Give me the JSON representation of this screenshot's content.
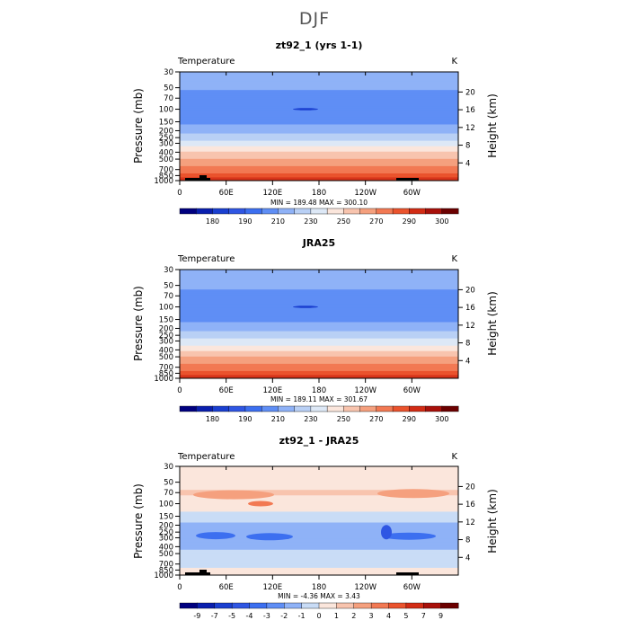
{
  "figure": {
    "title": "DJF"
  },
  "chart_data": [
    {
      "type": "heatmap",
      "title": "zt92_1 (yrs 1-1)",
      "variable": "Temperature",
      "units": "K",
      "ylabel": "Pressure (mb)",
      "y2label": "Height (km)",
      "x_ticks": [
        "0",
        "60E",
        "120E",
        "180",
        "120W",
        "60W"
      ],
      "y_ticks": [
        "30",
        "50",
        "70",
        "100",
        "150",
        "200",
        "250",
        "300",
        "400",
        "500",
        "700",
        "850",
        "1000"
      ],
      "y2_ticks": [
        "20",
        "16",
        "12",
        "8",
        "4"
      ],
      "stats": "MIN = 189.48   MAX = 300.10",
      "colorbar_levels": [
        175,
        180,
        185,
        190,
        200,
        210,
        220,
        230,
        240,
        250,
        260,
        270,
        280,
        290,
        295,
        300
      ],
      "colorbar_labels": [
        "180",
        "190",
        "210",
        "230",
        "250",
        "270",
        "290",
        "300"
      ],
      "colorbar_colors": [
        "#00007f",
        "#0a1fae",
        "#1a3fd0",
        "#2f56e3",
        "#3c6ff0",
        "#5f8ef5",
        "#8fb2f7",
        "#b9d0f5",
        "#dde8f6",
        "#fbe6dc",
        "#f8c4ae",
        "#f5a07e",
        "#f27953",
        "#ea532d",
        "#d22c15",
        "#a8100a",
        "#6b0000"
      ],
      "profile_levels": [
        {
          "p": 30,
          "T": 218
        },
        {
          "p": 50,
          "T": 212
        },
        {
          "p": 70,
          "T": 205
        },
        {
          "p": 100,
          "T": 202
        },
        {
          "p": 150,
          "T": 207
        },
        {
          "p": 200,
          "T": 216
        },
        {
          "p": 250,
          "T": 226
        },
        {
          "p": 300,
          "T": 234
        },
        {
          "p": 400,
          "T": 250
        },
        {
          "p": 500,
          "T": 262
        },
        {
          "p": 700,
          "T": 275
        },
        {
          "p": 850,
          "T": 282
        },
        {
          "p": 1000,
          "T": 290
        }
      ],
      "terrain": true
    },
    {
      "type": "heatmap",
      "title": "JRA25",
      "variable": "Temperature",
      "units": "K",
      "ylabel": "Pressure (mb)",
      "y2label": "Height (km)",
      "x_ticks": [
        "0",
        "60E",
        "120E",
        "180",
        "120W",
        "60W"
      ],
      "y_ticks": [
        "30",
        "50",
        "70",
        "100",
        "150",
        "200",
        "250",
        "300",
        "400",
        "500",
        "700",
        "850",
        "1000"
      ],
      "y2_ticks": [
        "20",
        "16",
        "12",
        "8",
        "4"
      ],
      "stats": "MIN = 189.11   MAX = 301.67",
      "colorbar_levels": [
        175,
        180,
        185,
        190,
        200,
        210,
        220,
        230,
        240,
        250,
        260,
        270,
        280,
        290,
        295,
        300
      ],
      "colorbar_labels": [
        "180",
        "190",
        "210",
        "230",
        "250",
        "270",
        "290",
        "300"
      ],
      "colorbar_colors": [
        "#00007f",
        "#0a1fae",
        "#1a3fd0",
        "#2f56e3",
        "#3c6ff0",
        "#5f8ef5",
        "#8fb2f7",
        "#b9d0f5",
        "#dde8f6",
        "#fbe6dc",
        "#f8c4ae",
        "#f5a07e",
        "#f27953",
        "#ea532d",
        "#d22c15",
        "#a8100a",
        "#6b0000"
      ],
      "profile_levels": [
        {
          "p": 30,
          "T": 219
        },
        {
          "p": 50,
          "T": 213
        },
        {
          "p": 70,
          "T": 206
        },
        {
          "p": 100,
          "T": 202
        },
        {
          "p": 150,
          "T": 207
        },
        {
          "p": 200,
          "T": 215
        },
        {
          "p": 250,
          "T": 225
        },
        {
          "p": 300,
          "T": 233
        },
        {
          "p": 400,
          "T": 249
        },
        {
          "p": 500,
          "T": 261
        },
        {
          "p": 700,
          "T": 275
        },
        {
          "p": 850,
          "T": 283
        },
        {
          "p": 1000,
          "T": 291
        }
      ],
      "terrain": false
    },
    {
      "type": "heatmap",
      "title": "zt92_1 - JRA25",
      "variable": "Temperature",
      "units": "K",
      "ylabel": "Pressure (mb)",
      "y2label": "Height (km)",
      "x_ticks": [
        "0",
        "60E",
        "120E",
        "180",
        "120W",
        "60W"
      ],
      "y_ticks": [
        "30",
        "50",
        "70",
        "100",
        "150",
        "200",
        "250",
        "300",
        "400",
        "500",
        "700",
        "850",
        "1000"
      ],
      "y2_ticks": [
        "20",
        "16",
        "12",
        "8",
        "4"
      ],
      "stats": "MIN =   -4.36   MAX =    3.43",
      "colorbar_levels": [
        -9,
        -7,
        -5,
        -4,
        -3,
        -2,
        -1,
        0,
        1,
        2,
        3,
        4,
        5,
        7,
        9
      ],
      "colorbar_labels": [
        "-9",
        "-7",
        "-5",
        "-4",
        "-3",
        "-2",
        "-1",
        "0",
        "1",
        "2",
        "3",
        "4",
        "5",
        "7",
        "9"
      ],
      "colorbar_colors": [
        "#00007f",
        "#0a1fae",
        "#1a3fd0",
        "#2f56e3",
        "#3c6ff0",
        "#5f8ef5",
        "#8fb2f7",
        "#c9dcf6",
        "#fbe6dc",
        "#f8c4ae",
        "#f5a07e",
        "#f27953",
        "#ea532d",
        "#d22c15",
        "#a8100a",
        "#6b0000"
      ],
      "profile_levels": [
        {
          "p": 30,
          "T": 0.8
        },
        {
          "p": 50,
          "T": 0.6
        },
        {
          "p": 70,
          "T": 1.1
        },
        {
          "p": 100,
          "T": 0.7
        },
        {
          "p": 150,
          "T": -0.5
        },
        {
          "p": 200,
          "T": -1.2
        },
        {
          "p": 250,
          "T": -1.8
        },
        {
          "p": 300,
          "T": -1.6
        },
        {
          "p": 400,
          "T": -1.2
        },
        {
          "p": 500,
          "T": -0.8
        },
        {
          "p": 700,
          "T": -0.4
        },
        {
          "p": 850,
          "T": 0.3
        },
        {
          "p": 1000,
          "T": 0.6
        }
      ],
      "terrain": true
    }
  ]
}
